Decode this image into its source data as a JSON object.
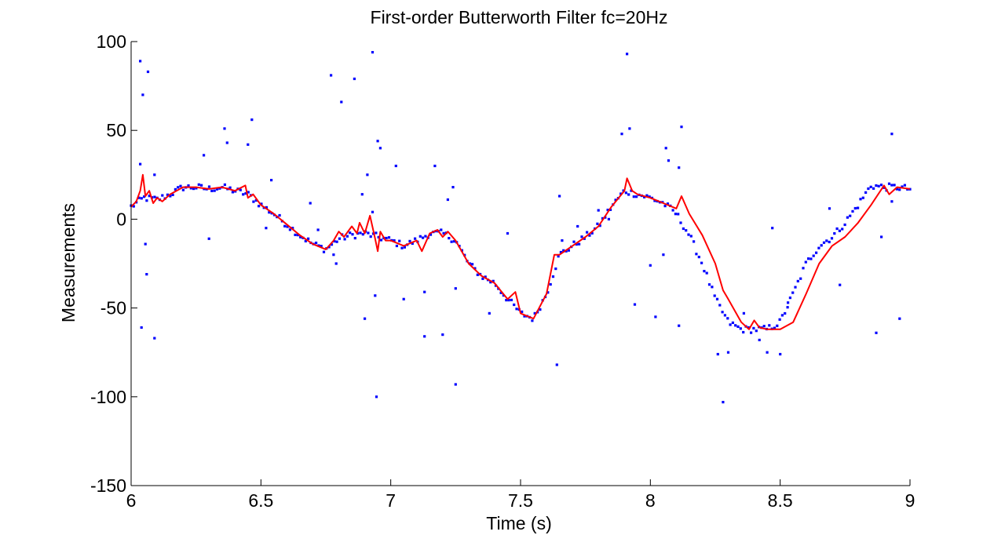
{
  "chart_data": {
    "type": "scatter",
    "title": "First-order Butterworth Filter fc=20Hz",
    "xlabel": "Time (s)",
    "ylabel": "Measurements",
    "xlim": [
      6,
      9
    ],
    "ylim": [
      -150,
      100
    ],
    "xticks": [
      6,
      6.5,
      7,
      7.5,
      8,
      8.5,
      9
    ],
    "xtick_labels": [
      "6",
      "6.5",
      "7",
      "7.5",
      "8",
      "8.5",
      "9"
    ],
    "yticks": [
      100,
      50,
      0,
      -50,
      -100,
      -150
    ],
    "ytick_labels": [
      "100",
      "50",
      "0",
      "-50",
      "-100",
      "-150"
    ],
    "grid": false,
    "legend": "none",
    "colors": {
      "measurements": "#0000ff",
      "filtered": "#ff0000",
      "axes": "#000000"
    },
    "trend": {
      "x": [
        6.0,
        6.05,
        6.1,
        6.15,
        6.2,
        6.25,
        6.3,
        6.35,
        6.4,
        6.45,
        6.5,
        6.55,
        6.6,
        6.65,
        6.7,
        6.75,
        6.8,
        6.85,
        6.9,
        6.95,
        7.0,
        7.05,
        7.1,
        7.15,
        7.2,
        7.25,
        7.3,
        7.35,
        7.4,
        7.45,
        7.5,
        7.55,
        7.6,
        7.65,
        7.7,
        7.75,
        7.8,
        7.85,
        7.9,
        7.95,
        8.0,
        8.05,
        8.1,
        8.15,
        8.2,
        8.25,
        8.3,
        8.35,
        8.4,
        8.45,
        8.5,
        8.55,
        8.6,
        8.65,
        8.7,
        8.75,
        8.8,
        8.85,
        8.9,
        8.95,
        9.0
      ],
      "y": [
        7,
        12,
        11,
        14,
        18,
        18,
        17,
        18,
        16,
        14,
        8,
        3,
        -3,
        -9,
        -14,
        -17,
        -11,
        -9,
        -8,
        -10,
        -12,
        -15,
        -12,
        -8,
        -8,
        -12,
        -25,
        -32,
        -36,
        -45,
        -53,
        -56,
        -42,
        -20,
        -15,
        -10,
        -4,
        7,
        16,
        14,
        12,
        9,
        3,
        -9,
        -25,
        -45,
        -58,
        -62,
        -62,
        -62,
        -58,
        -42,
        -25,
        -15,
        -10,
        -2,
        8,
        19,
        18,
        18,
        17
      ]
    },
    "filtered": {
      "x": [
        6.0,
        6.02,
        6.035,
        6.045,
        6.055,
        6.07,
        6.085,
        6.1,
        6.12,
        6.15,
        6.2,
        6.25,
        6.3,
        6.35,
        6.4,
        6.44,
        6.45,
        6.47,
        6.5,
        6.55,
        6.6,
        6.65,
        6.7,
        6.75,
        6.78,
        6.8,
        6.82,
        6.85,
        6.87,
        6.88,
        6.9,
        6.92,
        6.94,
        6.95,
        6.96,
        6.98,
        7.0,
        7.05,
        7.1,
        7.12,
        7.15,
        7.18,
        7.2,
        7.22,
        7.25,
        7.3,
        7.35,
        7.4,
        7.45,
        7.48,
        7.5,
        7.55,
        7.6,
        7.63,
        7.65,
        7.7,
        7.75,
        7.8,
        7.85,
        7.9,
        7.91,
        7.93,
        7.95,
        8.0,
        8.05,
        8.1,
        8.12,
        8.15,
        8.2,
        8.25,
        8.28,
        8.3,
        8.35,
        8.38,
        8.4,
        8.42,
        8.45,
        8.5,
        8.55,
        8.6,
        8.65,
        8.7,
        8.75,
        8.8,
        8.85,
        8.9,
        8.92,
        8.95,
        9.0
      ],
      "y": [
        7,
        10,
        16,
        25,
        13,
        16,
        9,
        12,
        10,
        14,
        18,
        18,
        17,
        18,
        16,
        19,
        12,
        14,
        8,
        3,
        -3,
        -9,
        -14,
        -17,
        -12,
        -7,
        -10,
        -4,
        -8,
        -2,
        -8,
        2,
        -11,
        -18,
        -7,
        -12,
        -12,
        -15,
        -12,
        -18,
        -8,
        -6,
        -10,
        -7,
        -12,
        -25,
        -32,
        -36,
        -45,
        -41,
        -53,
        -56,
        -42,
        -20,
        -20,
        -15,
        -10,
        -4,
        7,
        16,
        23,
        16,
        14,
        12,
        9,
        6,
        13,
        3,
        -9,
        -25,
        -40,
        -45,
        -58,
        -62,
        -57,
        -61,
        -62,
        -62,
        -58,
        -42,
        -25,
        -15,
        -10,
        -2,
        8,
        19,
        14,
        18,
        17
      ]
    },
    "measurements": {
      "points_along_trend": 300,
      "outliers": [
        {
          "x": 6.035,
          "y": 89
        },
        {
          "x": 6.045,
          "y": 70
        },
        {
          "x": 6.065,
          "y": 83
        },
        {
          "x": 6.04,
          "y": -61
        },
        {
          "x": 6.06,
          "y": -31
        },
        {
          "x": 6.055,
          "y": -14
        },
        {
          "x": 6.09,
          "y": -67
        },
        {
          "x": 6.035,
          "y": 31
        },
        {
          "x": 6.09,
          "y": 25
        },
        {
          "x": 6.28,
          "y": 36
        },
        {
          "x": 6.3,
          "y": -11
        },
        {
          "x": 6.36,
          "y": 51
        },
        {
          "x": 6.37,
          "y": 43
        },
        {
          "x": 6.45,
          "y": 42
        },
        {
          "x": 6.465,
          "y": 56
        },
        {
          "x": 6.52,
          "y": -5
        },
        {
          "x": 6.54,
          "y": 22
        },
        {
          "x": 6.69,
          "y": 9
        },
        {
          "x": 6.72,
          "y": -6
        },
        {
          "x": 6.77,
          "y": 81
        },
        {
          "x": 6.81,
          "y": 66
        },
        {
          "x": 6.86,
          "y": 79
        },
        {
          "x": 6.93,
          "y": 94
        },
        {
          "x": 6.95,
          "y": 44
        },
        {
          "x": 6.96,
          "y": 40
        },
        {
          "x": 6.91,
          "y": 25
        },
        {
          "x": 6.89,
          "y": 14
        },
        {
          "x": 6.93,
          "y": 4
        },
        {
          "x": 6.9,
          "y": -56
        },
        {
          "x": 6.94,
          "y": -43
        },
        {
          "x": 6.945,
          "y": -100
        },
        {
          "x": 6.78,
          "y": -20
        },
        {
          "x": 6.79,
          "y": -25
        },
        {
          "x": 7.02,
          "y": 30
        },
        {
          "x": 7.05,
          "y": -45
        },
        {
          "x": 7.13,
          "y": -41
        },
        {
          "x": 7.13,
          "y": -66
        },
        {
          "x": 7.17,
          "y": 30
        },
        {
          "x": 7.2,
          "y": -65
        },
        {
          "x": 7.22,
          "y": 11
        },
        {
          "x": 7.25,
          "y": -39
        },
        {
          "x": 7.25,
          "y": -93
        },
        {
          "x": 7.24,
          "y": 18
        },
        {
          "x": 7.45,
          "y": -8
        },
        {
          "x": 7.38,
          "y": -53
        },
        {
          "x": 7.64,
          "y": -82
        },
        {
          "x": 7.65,
          "y": 13
        },
        {
          "x": 7.66,
          "y": -12
        },
        {
          "x": 7.72,
          "y": -4
        },
        {
          "x": 7.8,
          "y": 5
        },
        {
          "x": 7.84,
          "y": 0
        },
        {
          "x": 7.89,
          "y": 48
        },
        {
          "x": 7.91,
          "y": 93
        },
        {
          "x": 7.92,
          "y": 51
        },
        {
          "x": 7.94,
          "y": -48
        },
        {
          "x": 8.0,
          "y": -26
        },
        {
          "x": 8.02,
          "y": -55
        },
        {
          "x": 8.05,
          "y": -20
        },
        {
          "x": 8.06,
          "y": 40
        },
        {
          "x": 8.07,
          "y": 33
        },
        {
          "x": 8.11,
          "y": -60
        },
        {
          "x": 8.11,
          "y": 29
        },
        {
          "x": 8.12,
          "y": 52
        },
        {
          "x": 8.26,
          "y": -76
        },
        {
          "x": 8.28,
          "y": -103
        },
        {
          "x": 8.3,
          "y": -75
        },
        {
          "x": 8.36,
          "y": -53
        },
        {
          "x": 8.42,
          "y": -68
        },
        {
          "x": 8.47,
          "y": -5
        },
        {
          "x": 8.5,
          "y": -76
        },
        {
          "x": 8.45,
          "y": -75
        },
        {
          "x": 8.53,
          "y": -47
        },
        {
          "x": 8.69,
          "y": 6
        },
        {
          "x": 8.73,
          "y": -37
        },
        {
          "x": 8.87,
          "y": -64
        },
        {
          "x": 8.89,
          "y": -10
        },
        {
          "x": 8.93,
          "y": 48
        },
        {
          "x": 8.96,
          "y": -56
        },
        {
          "x": 8.93,
          "y": 10
        }
      ]
    }
  }
}
